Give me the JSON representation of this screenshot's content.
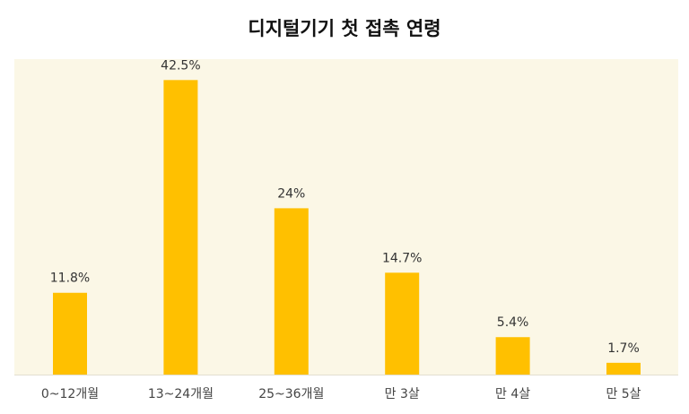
{
  "chart_data": {
    "type": "bar",
    "title": "디지털기기 첫 접촉 연령",
    "categories": [
      "0~12개월",
      "13~24개월",
      "25~36개월",
      "만 3살",
      "만 4살",
      "만 5살"
    ],
    "values": [
      11.8,
      42.5,
      24,
      14.7,
      5.4,
      1.7
    ],
    "value_labels": [
      "11.8%",
      "42.5%",
      "24%",
      "14.7%",
      "5.4%",
      "1.7%"
    ],
    "xlabel": "",
    "ylabel": "",
    "ylim": [
      0,
      45
    ],
    "grid": false,
    "legend": "none",
    "colors": {
      "bar": "#FFC000",
      "plot_background": "#FBF7E6",
      "axis": "#E2DED0"
    }
  }
}
